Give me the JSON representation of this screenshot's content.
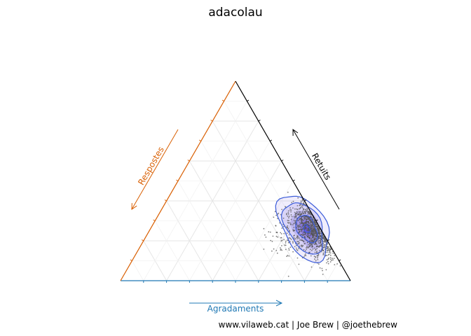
{
  "chart_data": {
    "type": "scatter",
    "subtype": "ternary",
    "title": "adacolau",
    "axes": {
      "bottom": {
        "label": "Agradaments",
        "color": "#1f78b4"
      },
      "left": {
        "label": "Respostes",
        "color": "#d95f02"
      },
      "right": {
        "label": "Retuits",
        "color": "#000000"
      }
    },
    "scale": [
      0,
      1
    ],
    "grid": true,
    "grid_step": 0.2,
    "density_contours": true,
    "point_color": "#555555",
    "contour_color": "#3a5bd9",
    "fill_color": "#3b1fd6",
    "center": {
      "agradaments": 0.7,
      "retuits": 0.25,
      "respostes": 0.05
    }
  },
  "caption": "www.vilaweb.cat | Joe Brew | @joethebrew"
}
